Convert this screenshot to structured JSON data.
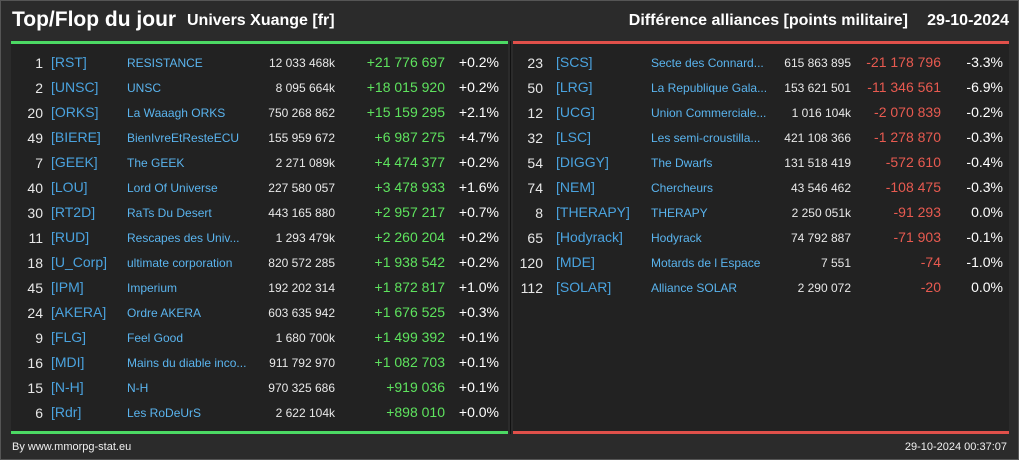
{
  "header": {
    "title": "Top/Flop du jour",
    "universe": "Univers Xuange [fr]",
    "right_title": "Différence alliances [points militaire]",
    "date": "29-10-2024"
  },
  "top": [
    {
      "rank": "1",
      "tag": "[RST]",
      "name": "RESISTANCE",
      "points": "12 033 468k",
      "diff": "+21 776 697",
      "pct": "+0.2%"
    },
    {
      "rank": "2",
      "tag": "[UNSC]",
      "name": "UNSC",
      "points": "8 095 664k",
      "diff": "+18 015 920",
      "pct": "+0.2%"
    },
    {
      "rank": "20",
      "tag": "[ORKS]",
      "name": "La Waaagh ORKS",
      "points": "750 268 862",
      "diff": "+15 159 295",
      "pct": "+2.1%"
    },
    {
      "rank": "49",
      "tag": "[BIERE]",
      "name": "BienIvreEtResteECU",
      "points": "155 959 672",
      "diff": "+6 987 275",
      "pct": "+4.7%"
    },
    {
      "rank": "7",
      "tag": "[GEEK]",
      "name": "The GEEK",
      "points": "2 271 089k",
      "diff": "+4 474 377",
      "pct": "+0.2%"
    },
    {
      "rank": "40",
      "tag": "[LOU]",
      "name": "Lord Of Universe",
      "points": "227 580 057",
      "diff": "+3 478 933",
      "pct": "+1.6%"
    },
    {
      "rank": "30",
      "tag": "[RT2D]",
      "name": "RaTs Du Desert",
      "points": "443 165 880",
      "diff": "+2 957 217",
      "pct": "+0.7%"
    },
    {
      "rank": "11",
      "tag": "[RUD]",
      "name": "Rescapes des Univ...",
      "points": "1 293 479k",
      "diff": "+2 260 204",
      "pct": "+0.2%"
    },
    {
      "rank": "18",
      "tag": "[U_Corp]",
      "name": "ultimate corporation",
      "points": "820 572 285",
      "diff": "+1 938 542",
      "pct": "+0.2%"
    },
    {
      "rank": "45",
      "tag": "[IPM]",
      "name": "Imperium",
      "points": "192 202 314",
      "diff": "+1 872 817",
      "pct": "+1.0%"
    },
    {
      "rank": "24",
      "tag": "[AKERA]",
      "name": "Ordre AKERA",
      "points": "603 635 942",
      "diff": "+1 676 525",
      "pct": "+0.3%"
    },
    {
      "rank": "9",
      "tag": "[FLG]",
      "name": "Feel Good",
      "points": "1 680 700k",
      "diff": "+1 499 392",
      "pct": "+0.1%"
    },
    {
      "rank": "16",
      "tag": "[MDI]",
      "name": "Mains du diable inco...",
      "points": "911 792 970",
      "diff": "+1 082 703",
      "pct": "+0.1%"
    },
    {
      "rank": "15",
      "tag": "[N-H]",
      "name": "N-H",
      "points": "970 325 686",
      "diff": "+919 036",
      "pct": "+0.1%"
    },
    {
      "rank": "6",
      "tag": "[Rdr]",
      "name": "Les RoDeUrS",
      "points": "2 622 104k",
      "diff": "+898 010",
      "pct": "+0.0%"
    }
  ],
  "flop": [
    {
      "rank": "23",
      "tag": "[SCS]",
      "name": "Secte des Connard...",
      "points": "615 863 895",
      "diff": "-21 178 796",
      "pct": "-3.3%"
    },
    {
      "rank": "50",
      "tag": "[LRG]",
      "name": "La Republique Gala...",
      "points": "153 621 501",
      "diff": "-11 346 561",
      "pct": "-6.9%"
    },
    {
      "rank": "12",
      "tag": "[UCG]",
      "name": "Union Commerciale...",
      "points": "1 016 104k",
      "diff": "-2 070 839",
      "pct": "-0.2%"
    },
    {
      "rank": "32",
      "tag": "[LSC]",
      "name": "Les semi-croustilla...",
      "points": "421 108 366",
      "diff": "-1 278 870",
      "pct": "-0.3%"
    },
    {
      "rank": "54",
      "tag": "[DIGGY]",
      "name": "The Dwarfs",
      "points": "131 518 419",
      "diff": "-572 610",
      "pct": "-0.4%"
    },
    {
      "rank": "74",
      "tag": "[NEM]",
      "name": "Chercheurs",
      "points": "43 546 462",
      "diff": "-108 475",
      "pct": "-0.3%"
    },
    {
      "rank": "8",
      "tag": "[THERAPY]",
      "name": "THERAPY",
      "points": "2 250 051k",
      "diff": "-91 293",
      "pct": "0.0%"
    },
    {
      "rank": "65",
      "tag": "[Hodyrack]",
      "name": "Hodyrack",
      "points": "74 792 887",
      "diff": "-71 903",
      "pct": "-0.1%"
    },
    {
      "rank": "120",
      "tag": "[MDE]",
      "name": "Motards de l Espace",
      "points": "7 551",
      "diff": "-74",
      "pct": "-1.0%"
    },
    {
      "rank": "112",
      "tag": "[SOLAR]",
      "name": "Alliance SOLAR",
      "points": "2 290 072",
      "diff": "-20",
      "pct": "0.0%"
    }
  ],
  "footer": {
    "source": "By www.mmorpg-stat.eu",
    "timestamp": "29-10-2024 00:37:07"
  },
  "colors": {
    "positive": "#5ee35e",
    "negative": "#e85a50",
    "tag": "#4aa3df",
    "name": "#5ab4ee"
  }
}
